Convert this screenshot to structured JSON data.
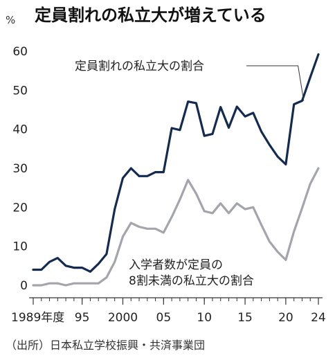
{
  "header": {
    "title": "定員割れの私立大が増えている",
    "unit": "%"
  },
  "source": "（出所）日本私立学校振興・共済事業団",
  "annotations": {
    "navy": "定員割れの私立大の割合",
    "gray_line1": "入学者数が定員の",
    "gray_line2": "8割未満の私立大の割合"
  },
  "colors": {
    "navy": "#132a52",
    "gray": "#a3a5ab",
    "axis": "#333333"
  },
  "chart_data": {
    "type": "line",
    "title": "定員割れの私立大が増えている",
    "ylabel": "%",
    "xlabel": "",
    "ylim": [
      0,
      65
    ],
    "xlim": [
      1988.5,
      2024.5
    ],
    "yticks": [
      0,
      10,
      20,
      30,
      40,
      50,
      60
    ],
    "xticks": [
      {
        "value": 1989,
        "label": "1989年度"
      },
      {
        "value": 1995,
        "label": "95"
      },
      {
        "value": 2000,
        "label": "2000"
      },
      {
        "value": 2005,
        "label": "05"
      },
      {
        "value": 2010,
        "label": "10"
      },
      {
        "value": 2015,
        "label": "15"
      },
      {
        "value": 2020,
        "label": "20"
      },
      {
        "value": 2024,
        "label": "24"
      }
    ],
    "x": [
      1989,
      1990,
      1991,
      1992,
      1993,
      1994,
      1995,
      1996,
      1997,
      1998,
      1999,
      2000,
      2001,
      2002,
      2003,
      2004,
      2005,
      2006,
      2007,
      2008,
      2009,
      2010,
      2011,
      2012,
      2013,
      2014,
      2015,
      2016,
      2017,
      2018,
      2019,
      2020,
      2021,
      2022,
      2023,
      2024
    ],
    "series": [
      {
        "name": "定員割れの私立大の割合",
        "color": "navy",
        "values": [
          4,
          4,
          6,
          7,
          5,
          4.5,
          4.5,
          3.5,
          5.5,
          8,
          19.5,
          27.5,
          30,
          28,
          28,
          29,
          29,
          40.3,
          39.8,
          47.1,
          46.7,
          38.3,
          38.8,
          45.7,
          40.4,
          45.8,
          43.3,
          44.2,
          39.4,
          36.0,
          33.0,
          31.0,
          46.4,
          47.3,
          53.3,
          59.2
        ]
      },
      {
        "name": "入学者数が定員の8割未満の私立大の割合",
        "color": "gray",
        "values": [
          0,
          0,
          0.5,
          0.5,
          0,
          0.5,
          0.5,
          0.5,
          0.5,
          2,
          6,
          12.5,
          16,
          15,
          14.5,
          14.5,
          13.5,
          17.5,
          22,
          27,
          23.5,
          19,
          18.5,
          21,
          18.5,
          21,
          19.5,
          20,
          15.5,
          11.2,
          8.6,
          6.5,
          13.8,
          19.8,
          26,
          30
        ]
      }
    ]
  }
}
